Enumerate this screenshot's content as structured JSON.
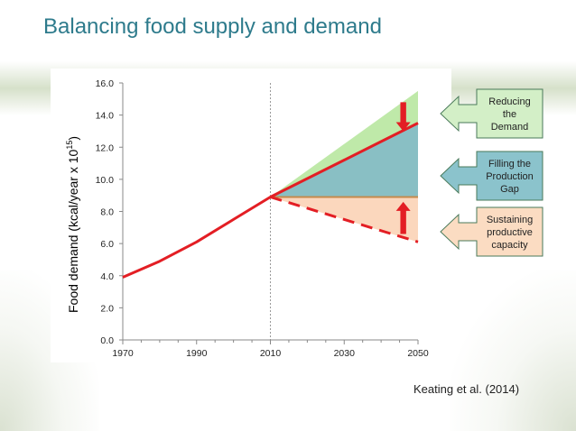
{
  "slide": {
    "title": "Balancing food supply and demand",
    "citation": "Keating et al. (2014)"
  },
  "chart_data": {
    "type": "line",
    "ylabel": "Food demand (kcal/year x 10",
    "ylabel_sup": "15",
    "ylabel_close": ")",
    "ylim": [
      0,
      16
    ],
    "xlim": [
      1970,
      2050
    ],
    "x_ticks": [
      1970,
      1990,
      2010,
      2030,
      2050
    ],
    "y_ticks": [
      0,
      2,
      4,
      6,
      8,
      10,
      12,
      14,
      16
    ],
    "y_tick_labels": [
      "0.0",
      "2.0",
      "4.0",
      "6.0",
      "8.0",
      "10.0",
      "12.0",
      "14.0",
      "16.0"
    ],
    "grid": false,
    "reference_line_x": 2010,
    "series": [
      {
        "style": "solid",
        "color": "#e31e24",
        "x": [
          1970,
          1980,
          1990,
          2000,
          2010,
          2020,
          2030,
          2040,
          2050
        ],
        "y": [
          3.9,
          4.9,
          6.1,
          7.5,
          8.9,
          10.05,
          11.2,
          12.35,
          13.5
        ]
      },
      {
        "style": "dashed",
        "color": "#e31e24",
        "x": [
          2010,
          2050
        ],
        "y": [
          8.9,
          6.1
        ]
      }
    ],
    "bands": [
      {
        "color": "#bfe9a9",
        "x": [
          2010,
          2050
        ],
        "y_low": [
          8.9,
          13.5
        ],
        "y_high": [
          8.9,
          15.5
        ]
      },
      {
        "color": "#89bfc4",
        "x": [
          2010,
          2050
        ],
        "y_low": [
          8.9,
          8.9
        ],
        "y_high": [
          8.9,
          13.5
        ]
      },
      {
        "color": "#fbd7bd",
        "x": [
          2010,
          2050
        ],
        "y_low": [
          8.9,
          6.1
        ],
        "y_high": [
          8.9,
          8.9
        ]
      }
    ],
    "supply_line": {
      "color": "#c58a4c",
      "y": 8.9,
      "x": [
        2010,
        2050
      ]
    },
    "arrows": [
      {
        "direction": "down",
        "x": 2046,
        "y_from": 14.8,
        "y_to": 13.0,
        "color": "#e31e24"
      },
      {
        "direction": "up",
        "x": 2046,
        "y_from": 6.6,
        "y_to": 8.6,
        "color": "#e31e24"
      }
    ],
    "annotations": [
      {
        "lines": [
          "Reducing",
          "the",
          "Demand"
        ],
        "color": "#d3efc7"
      },
      {
        "lines": [
          "Filling the",
          "Production",
          "Gap"
        ],
        "color": "#8bc3cc"
      },
      {
        "lines": [
          "Sustaining",
          "productive",
          "capacity"
        ],
        "color": "#fbdcc2"
      }
    ]
  }
}
